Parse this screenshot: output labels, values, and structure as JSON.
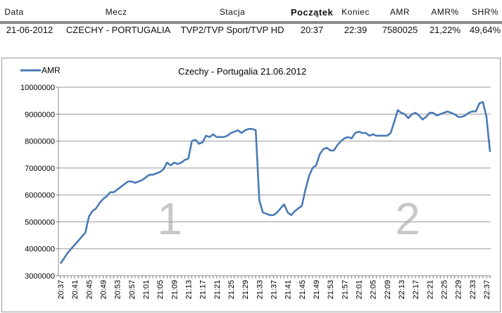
{
  "table": {
    "headers": [
      "Data",
      "Mecz",
      "Stacja",
      "Początek",
      "Koniec",
      "AMR",
      "AMR%",
      "SHR%"
    ],
    "row": [
      "21-06-2012",
      "CZECHY - PORTUGALIA",
      "TVP2/TVP Sport/TVP HD",
      "20:37",
      "22:39",
      "7580025",
      "21,22%",
      "49,64%"
    ]
  },
  "chart_data": {
    "type": "line",
    "title": "Czechy - Portugalia  21.06.2012",
    "legend": {
      "label": "AMR",
      "placement": "top-left"
    },
    "color": "#4a7ab5",
    "ylim": [
      3000000,
      10000000
    ],
    "yticks": [
      "10000000",
      "9000000",
      "8000000",
      "7000000",
      "6000000",
      "5000000",
      "4000000",
      "3000000"
    ],
    "xtick_labels": [
      "20:37",
      "20:41",
      "20:45",
      "20:49",
      "20:53",
      "20:57",
      "21:01",
      "21:05",
      "21:09",
      "21:13",
      "21:17",
      "21:21",
      "21:25",
      "21:29",
      "21:33",
      "21:37",
      "21:41",
      "21:45",
      "21:49",
      "21:53",
      "21:57",
      "22:01",
      "22:05",
      "22:09",
      "22:13",
      "22:17",
      "22:21",
      "22:25",
      "22:29",
      "22:33",
      "22:37"
    ],
    "annotations": [
      "1",
      "2"
    ],
    "values": [
      3450000,
      3650000,
      3850000,
      4000000,
      4150000,
      4300000,
      4450000,
      4600000,
      5200000,
      5400000,
      5500000,
      5700000,
      5850000,
      5950000,
      6100000,
      6100000,
      6200000,
      6300000,
      6400000,
      6500000,
      6500000,
      6450000,
      6500000,
      6550000,
      6650000,
      6750000,
      6750000,
      6800000,
      6850000,
      6950000,
      7200000,
      7100000,
      7200000,
      7150000,
      7200000,
      7300000,
      7350000,
      8000000,
      8050000,
      7900000,
      7950000,
      8200000,
      8150000,
      8250000,
      8150000,
      8150000,
      8150000,
      8200000,
      8300000,
      8350000,
      8400000,
      8300000,
      8400000,
      8450000,
      8450000,
      8400000,
      5800000,
      5350000,
      5300000,
      5250000,
      5250000,
      5350000,
      5500000,
      5650000,
      5350000,
      5250000,
      5400000,
      5500000,
      5600000,
      6200000,
      6700000,
      7000000,
      7100000,
      7500000,
      7700000,
      7750000,
      7650000,
      7650000,
      7850000,
      8000000,
      8100000,
      8150000,
      8100000,
      8300000,
      8350000,
      8300000,
      8300000,
      8200000,
      8250000,
      8200000,
      8200000,
      8200000,
      8200000,
      8300000,
      8700000,
      9150000,
      9050000,
      9000000,
      8850000,
      9000000,
      9050000,
      8950000,
      8800000,
      8900000,
      9050000,
      9050000,
      8950000,
      9000000,
      9050000,
      9100000,
      9050000,
      9000000,
      8900000,
      8900000,
      8950000,
      9050000,
      9100000,
      9100000,
      9400000,
      9450000,
      8900000,
      7600000
    ]
  }
}
